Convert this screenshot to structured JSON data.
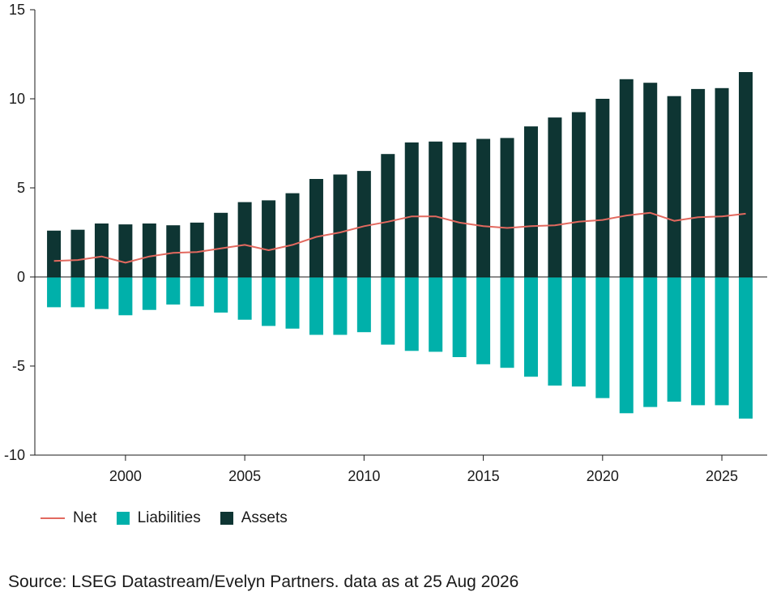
{
  "chart_data": {
    "type": "bar",
    "x": [
      1997,
      1998,
      1999,
      2000,
      2001,
      2002,
      2003,
      2004,
      2005,
      2006,
      2007,
      2008,
      2009,
      2010,
      2011,
      2012,
      2013,
      2014,
      2015,
      2016,
      2017,
      2018,
      2019,
      2020,
      2021,
      2022,
      2023,
      2024,
      2025,
      2026
    ],
    "series": [
      {
        "name": "Assets",
        "kind": "bar",
        "color": "#0e3533",
        "values": [
          2.6,
          2.65,
          3.0,
          2.95,
          3.0,
          2.9,
          3.05,
          3.6,
          4.2,
          4.3,
          4.7,
          5.5,
          5.75,
          5.95,
          6.9,
          7.55,
          7.6,
          7.55,
          7.75,
          7.8,
          8.45,
          8.95,
          9.25,
          10.0,
          11.1,
          10.9,
          10.15,
          10.55,
          10.6,
          11.5
        ]
      },
      {
        "name": "Liabilities",
        "kind": "bar",
        "color": "#00b0aa",
        "values": [
          -1.7,
          -1.7,
          -1.8,
          -2.15,
          -1.85,
          -1.55,
          -1.65,
          -2.0,
          -2.4,
          -2.75,
          -2.9,
          -3.25,
          -3.25,
          -3.1,
          -3.8,
          -4.15,
          -4.2,
          -4.5,
          -4.9,
          -5.1,
          -5.6,
          -6.1,
          -6.15,
          -6.8,
          -7.65,
          -7.3,
          -7.0,
          -7.2,
          -7.2,
          -7.95
        ]
      },
      {
        "name": "Net",
        "kind": "line",
        "color": "#e2695f",
        "values": [
          0.9,
          0.95,
          1.15,
          0.8,
          1.15,
          1.35,
          1.4,
          1.6,
          1.8,
          1.5,
          1.8,
          2.25,
          2.5,
          2.85,
          3.1,
          3.4,
          3.4,
          3.05,
          2.85,
          2.75,
          2.85,
          2.9,
          3.1,
          3.2,
          3.45,
          3.6,
          3.15,
          3.35,
          3.4,
          3.55
        ]
      }
    ],
    "xticks": [
      2000,
      2005,
      2010,
      2015,
      2020,
      2025
    ],
    "yticks": [
      -10,
      -5,
      0,
      5,
      10,
      15
    ],
    "xlim": [
      1996.2,
      2026.9
    ],
    "ylim": [
      -10,
      15
    ],
    "title": "",
    "xlabel": "",
    "ylabel": "",
    "legend_position": "bottom-left",
    "grid": false
  },
  "legend": {
    "net": "Net",
    "liabilities": "Liabilities",
    "assets": "Assets"
  },
  "colors": {
    "net": "#e2695f",
    "liabilities": "#00b0aa",
    "assets": "#0e3533",
    "axis": "#1a1a1a"
  },
  "source": "Source: LSEG Datastream/Evelyn Partners. data as at 25 Aug 2026"
}
